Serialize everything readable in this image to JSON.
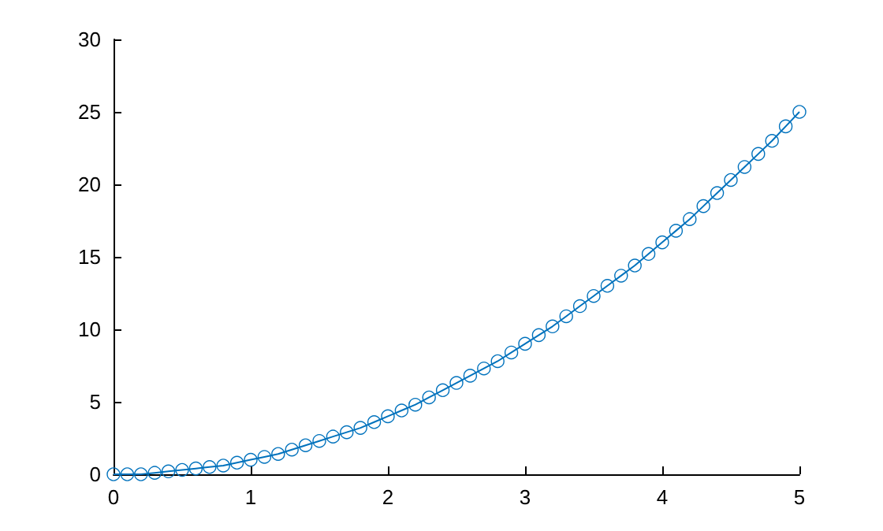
{
  "chart_data": {
    "type": "line",
    "marker": "circle",
    "grid": false,
    "x": [
      0,
      0.1,
      0.2,
      0.3,
      0.4,
      0.5,
      0.6,
      0.7,
      0.8,
      0.9,
      1,
      1.1,
      1.2,
      1.3,
      1.4,
      1.5,
      1.6,
      1.7,
      1.8,
      1.9,
      2,
      2.1,
      2.2,
      2.3,
      2.4,
      2.5,
      2.6,
      2.7,
      2.8,
      2.9,
      3,
      3.1,
      3.2,
      3.3,
      3.4,
      3.5,
      3.6,
      3.7,
      3.8,
      3.9,
      4,
      4.1,
      4.2,
      4.3,
      4.4,
      4.5,
      4.6,
      4.7,
      4.8,
      4.9,
      5
    ],
    "series": [
      {
        "color": "#0072bd",
        "values": [
          0,
          0,
          0,
          0.1,
          0.2,
          0.3,
          0.4,
          0.5,
          0.6,
          0.8,
          1,
          1.2,
          1.4,
          1.7,
          2,
          2.3,
          2.6,
          2.9,
          3.2,
          3.6,
          4,
          4.4,
          4.8,
          5.3,
          5.8,
          6.3,
          6.8,
          7.3,
          7.8,
          8.4,
          9,
          9.6,
          10.2,
          10.9,
          11.6,
          12.3,
          13,
          13.7,
          14.4,
          15.2,
          16,
          16.8,
          17.6,
          18.5,
          19.4,
          20.3,
          21.2,
          22.1,
          23,
          24,
          25
        ]
      }
    ],
    "xlim": [
      0,
      5
    ],
    "xticks": [
      0,
      1,
      2,
      3,
      4,
      5
    ],
    "ylim": [
      0,
      30
    ],
    "yticks": [
      0,
      5,
      10,
      15,
      20,
      25,
      30
    ]
  }
}
